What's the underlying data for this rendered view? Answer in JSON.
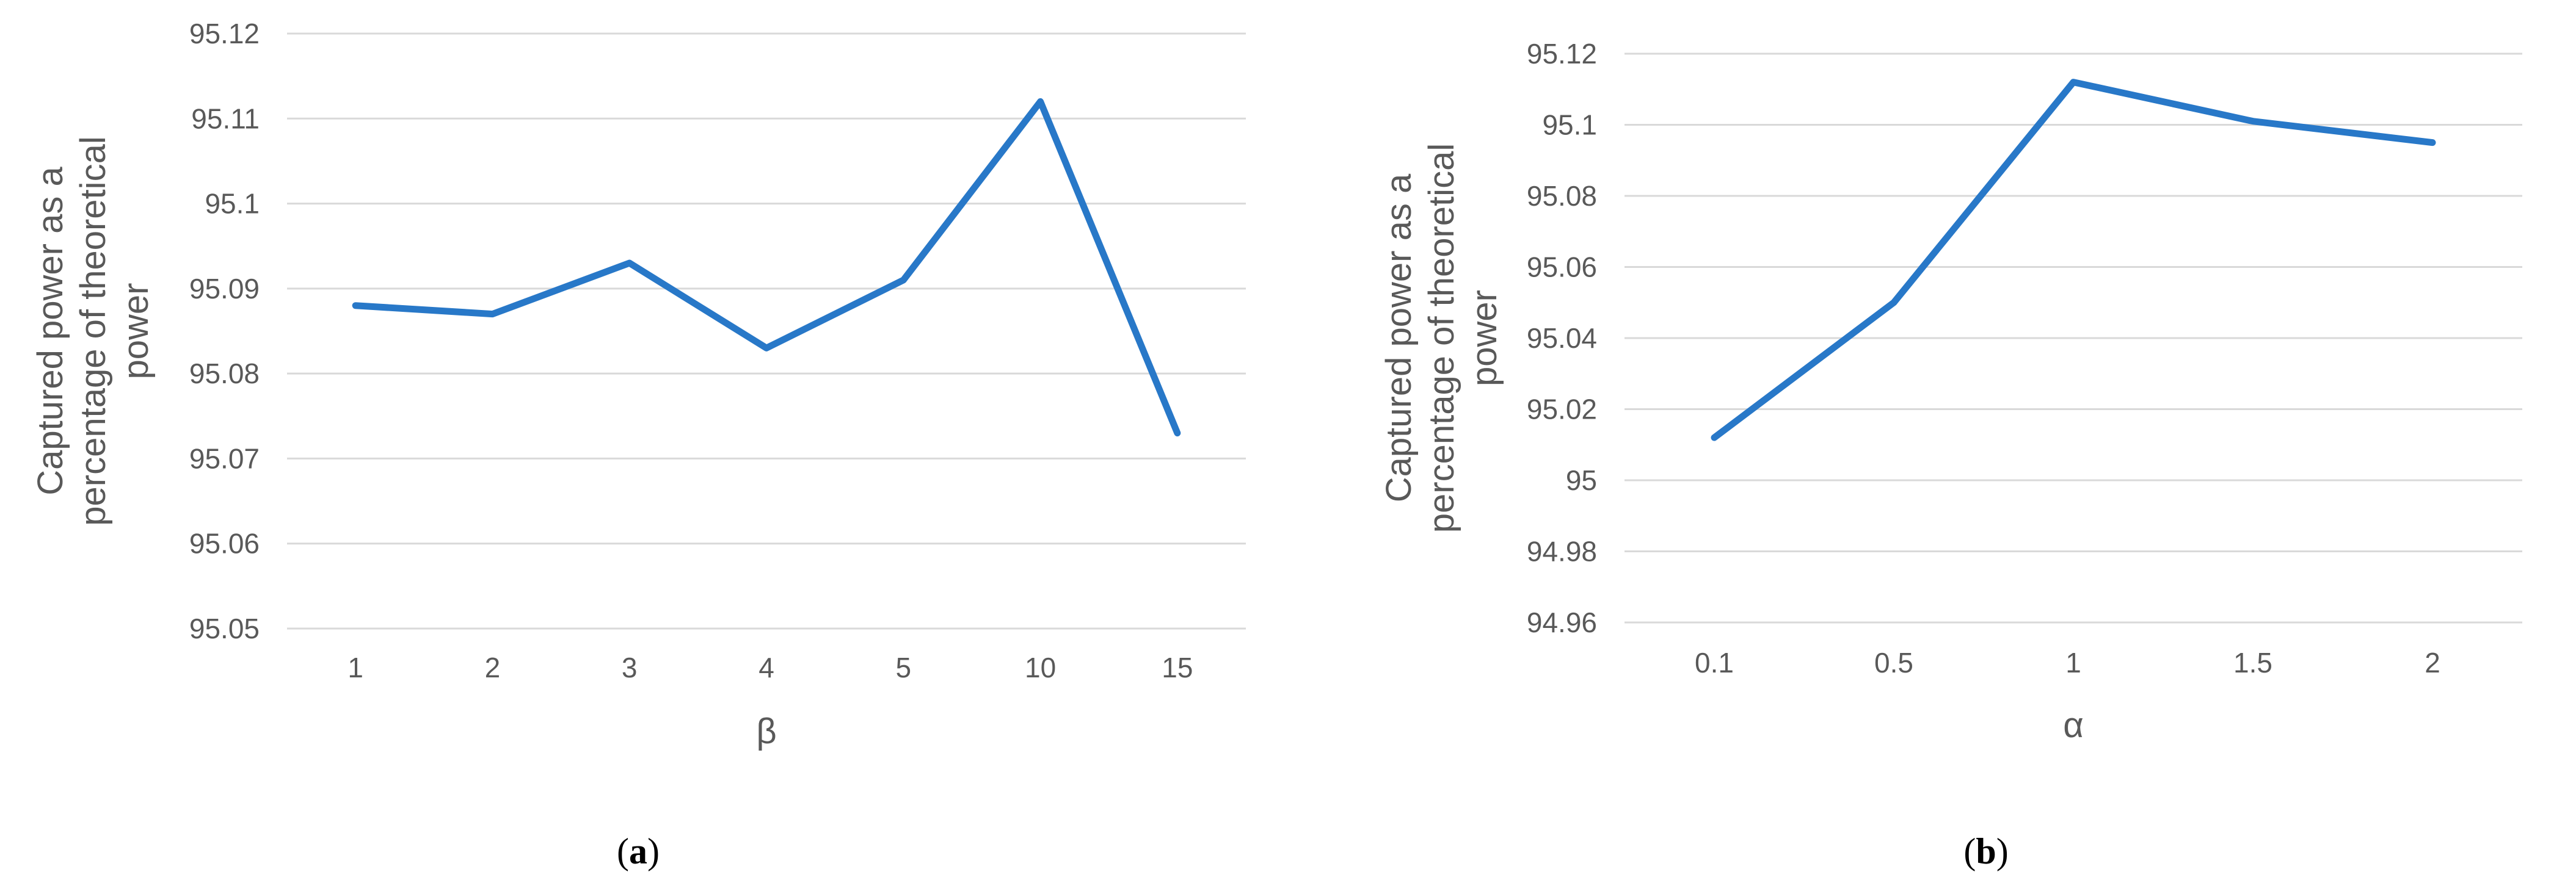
{
  "chart_data": [
    {
      "type": "line",
      "panel_label": "a",
      "title": "",
      "ylabel_lines": [
        "Captured power as a",
        "percentage of theoretical",
        "power"
      ],
      "xlabel": "β",
      "categories": [
        "1",
        "2",
        "3",
        "4",
        "5",
        "10",
        "15"
      ],
      "series": [
        {
          "values": [
            95.088,
            95.087,
            95.093,
            95.083,
            95.091,
            95.112,
            95.073
          ]
        }
      ],
      "ylim": [
        95.05,
        95.12
      ],
      "yticks": [
        "95.05",
        "95.06",
        "95.07",
        "95.08",
        "95.09",
        "95.1",
        "95.11",
        "95.12"
      ],
      "grid": true,
      "legend": "none",
      "line_color": "#2878c8"
    },
    {
      "type": "line",
      "panel_label": "b",
      "title": "",
      "ylabel_lines": [
        "Captured power as a",
        "percentage of theoretical",
        "power"
      ],
      "xlabel": "α",
      "categories": [
        "0.1",
        "0.5",
        "1",
        "1.5",
        "2"
      ],
      "series": [
        {
          "values": [
            95.012,
            95.05,
            95.112,
            95.101,
            95.095
          ]
        }
      ],
      "ylim": [
        94.96,
        95.12
      ],
      "yticks": [
        "94.96",
        "94.98",
        "95",
        "95.02",
        "95.04",
        "95.06",
        "95.08",
        "95.1",
        "95.12"
      ],
      "grid": true,
      "legend": "none",
      "line_color": "#2878c8"
    }
  ]
}
